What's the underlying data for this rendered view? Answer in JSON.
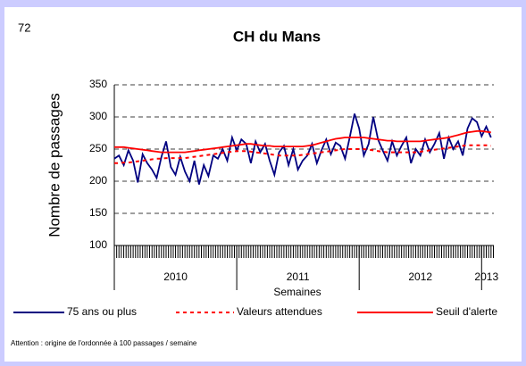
{
  "page_number": "72",
  "footnote": "Attention : origine de l'ordonnée à 100 passages / semaine",
  "chart_data": {
    "type": "line",
    "title": "CH du Mans",
    "x_label": "Semaines",
    "y_label": "Nombre de passages",
    "xlim": [
      2010,
      2013.1
    ],
    "xticks": [
      {
        "value": 2010.5,
        "label": "2010"
      },
      {
        "value": 2011.5,
        "label": "2011"
      },
      {
        "value": 2012.5,
        "label": "2012"
      },
      {
        "value": 2013.04,
        "label": "2013"
      }
    ],
    "ylim": [
      100,
      350
    ],
    "yticks": [
      100,
      150,
      200,
      250,
      300,
      350
    ],
    "grid": true,
    "legend": "bottom",
    "x": [
      2010.0,
      2010.038,
      2010.077,
      2010.115,
      2010.154,
      2010.192,
      2010.231,
      2010.269,
      2010.308,
      2010.346,
      2010.385,
      2010.423,
      2010.462,
      2010.5,
      2010.538,
      2010.577,
      2010.615,
      2010.654,
      2010.692,
      2010.731,
      2010.769,
      2010.808,
      2010.846,
      2010.885,
      2010.923,
      2010.962,
      2011.0,
      2011.038,
      2011.077,
      2011.115,
      2011.154,
      2011.192,
      2011.231,
      2011.269,
      2011.308,
      2011.346,
      2011.385,
      2011.423,
      2011.462,
      2011.5,
      2011.538,
      2011.577,
      2011.615,
      2011.654,
      2011.692,
      2011.731,
      2011.769,
      2011.808,
      2011.846,
      2011.885,
      2011.923,
      2011.962,
      2012.0,
      2012.038,
      2012.077,
      2012.115,
      2012.154,
      2012.192,
      2012.231,
      2012.269,
      2012.308,
      2012.346,
      2012.385,
      2012.423,
      2012.462,
      2012.5,
      2012.538,
      2012.577,
      2012.615,
      2012.654,
      2012.692,
      2012.731,
      2012.769,
      2012.808,
      2012.846,
      2012.885,
      2012.923,
      2012.962,
      2013.0,
      2013.038,
      2013.077
    ],
    "series": [
      {
        "name": "75 ans ou plus",
        "color": "#000080",
        "line_style": "solid",
        "values": [
          235,
          240,
          225,
          248,
          232,
          198,
          242,
          228,
          218,
          205,
          238,
          262,
          222,
          210,
          238,
          215,
          200,
          232,
          195,
          225,
          208,
          240,
          235,
          250,
          232,
          268,
          248,
          265,
          258,
          228,
          262,
          245,
          258,
          232,
          210,
          245,
          255,
          225,
          250,
          218,
          232,
          240,
          258,
          228,
          248,
          265,
          242,
          260,
          255,
          235,
          268,
          305,
          282,
          240,
          258,
          300,
          265,
          248,
          232,
          262,
          240,
          255,
          268,
          228,
          250,
          240,
          265,
          245,
          258,
          275,
          235,
          268,
          250,
          262,
          240,
          282,
          298,
          292,
          270,
          285,
          268
        ]
      },
      {
        "name": "Valeurs attendues",
        "color": "#ff0000",
        "line_style": "dashed",
        "values": [
          228,
          228,
          229,
          229,
          230,
          231,
          232,
          233,
          234,
          235,
          235,
          236,
          236,
          236,
          236,
          236,
          237,
          238,
          239,
          240,
          241,
          242,
          243,
          244,
          245,
          246,
          247,
          247,
          247,
          246,
          245,
          244,
          243,
          242,
          241,
          240,
          240,
          240,
          240,
          240,
          241,
          242,
          243,
          244,
          245,
          246,
          247,
          248,
          249,
          250,
          250,
          250,
          250,
          250,
          249,
          248,
          247,
          246,
          245,
          245,
          245,
          245,
          245,
          245,
          245,
          246,
          247,
          248,
          249,
          250,
          251,
          252,
          253,
          254,
          255,
          256,
          256,
          256,
          256,
          256,
          255
        ]
      },
      {
        "name": "Seuil d'alerte",
        "color": "#ff0000",
        "line_style": "solid",
        "values": [
          253,
          253,
          253,
          252,
          251,
          250,
          249,
          248,
          247,
          246,
          245,
          245,
          245,
          245,
          245,
          245,
          246,
          247,
          248,
          249,
          250,
          251,
          252,
          253,
          254,
          255,
          256,
          257,
          258,
          258,
          257,
          256,
          255,
          255,
          254,
          254,
          254,
          254,
          254,
          254,
          254,
          255,
          256,
          258,
          260,
          262,
          264,
          266,
          267,
          268,
          268,
          268,
          268,
          268,
          267,
          266,
          265,
          264,
          263,
          263,
          262,
          262,
          262,
          262,
          262,
          262,
          263,
          264,
          265,
          266,
          267,
          268,
          270,
          272,
          274,
          276,
          277,
          278,
          278,
          277,
          276
        ]
      }
    ]
  }
}
